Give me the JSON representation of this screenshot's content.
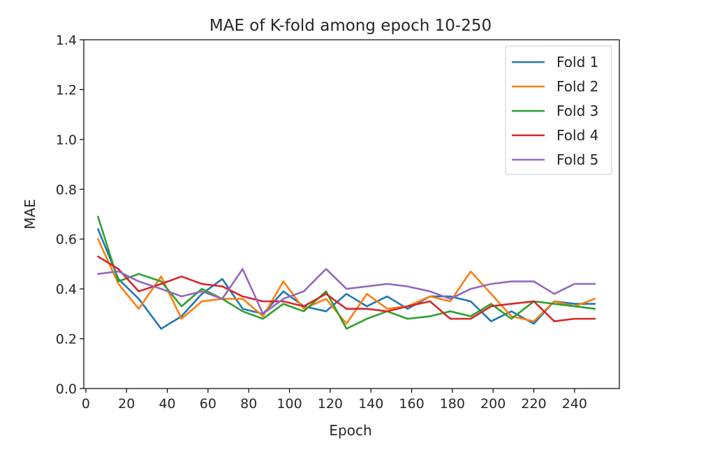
{
  "chart_data": {
    "type": "line",
    "title": "MAE of K-fold among epoch 10-250",
    "xlabel": "Epoch",
    "ylabel": "MAE",
    "xlim": [
      -1,
      262
    ],
    "ylim": [
      0.0,
      1.4
    ],
    "xticks": [
      0,
      20,
      40,
      60,
      80,
      100,
      120,
      140,
      160,
      180,
      200,
      220,
      240
    ],
    "xtick_labels": [
      "0",
      "20",
      "40",
      "60",
      "80",
      "100",
      "120",
      "140",
      "160",
      "180",
      "200",
      "220",
      "240"
    ],
    "yticks": [
      0.0,
      0.2,
      0.4,
      0.6,
      0.8,
      1.0,
      1.2,
      1.4
    ],
    "ytick_labels": [
      "0.0",
      "0.2",
      "0.4",
      "0.6",
      "0.8",
      "1.0",
      "1.2",
      "1.4"
    ],
    "grid": false,
    "legend_position": "top-right",
    "x": [
      6,
      16,
      26,
      37,
      47,
      57,
      67,
      77,
      87,
      97,
      107,
      118,
      128,
      138,
      148,
      158,
      169,
      179,
      189,
      199,
      209,
      220,
      230,
      240,
      250
    ],
    "series": [
      {
        "name": "Fold 1",
        "color": "#1f77b4",
        "values": [
          0.64,
          0.44,
          0.36,
          0.24,
          0.29,
          0.38,
          0.44,
          0.32,
          0.3,
          0.39,
          0.33,
          0.31,
          0.38,
          0.33,
          0.37,
          0.32,
          0.37,
          0.37,
          0.35,
          0.27,
          0.31,
          0.26,
          0.35,
          0.34,
          0.34
        ]
      },
      {
        "name": "Fold 2",
        "color": "#ff7f0e",
        "values": [
          0.6,
          0.42,
          0.32,
          0.45,
          0.28,
          0.35,
          0.36,
          0.36,
          0.29,
          0.43,
          0.32,
          0.36,
          0.26,
          0.38,
          0.32,
          0.33,
          0.37,
          0.35,
          0.47,
          0.38,
          0.29,
          0.27,
          0.35,
          0.33,
          0.36
        ]
      },
      {
        "name": "Fold 3",
        "color": "#2ca02c",
        "values": [
          0.69,
          0.43,
          0.46,
          0.43,
          0.33,
          0.4,
          0.36,
          0.31,
          0.28,
          0.34,
          0.31,
          0.39,
          0.24,
          0.28,
          0.31,
          0.28,
          0.29,
          0.31,
          0.29,
          0.34,
          0.28,
          0.35,
          0.34,
          0.33,
          0.32
        ]
      },
      {
        "name": "Fold 4",
        "color": "#d62728",
        "values": [
          0.53,
          0.48,
          0.39,
          0.42,
          0.45,
          0.42,
          0.41,
          0.37,
          0.35,
          0.35,
          0.33,
          0.38,
          0.32,
          0.32,
          0.31,
          0.33,
          0.35,
          0.28,
          0.28,
          0.33,
          0.34,
          0.35,
          0.27,
          0.28,
          0.28
        ]
      },
      {
        "name": "Fold 5",
        "color": "#9467bd",
        "values": [
          0.46,
          0.47,
          0.43,
          0.4,
          0.37,
          0.39,
          0.36,
          0.48,
          0.3,
          0.36,
          0.39,
          0.48,
          0.4,
          0.41,
          0.42,
          0.41,
          0.39,
          0.36,
          0.4,
          0.42,
          0.43,
          0.43,
          0.38,
          0.42,
          0.42
        ]
      }
    ]
  }
}
